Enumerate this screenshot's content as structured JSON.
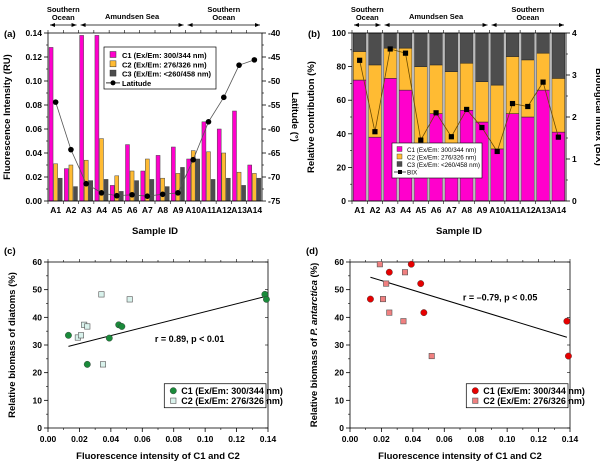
{
  "colors": {
    "C1": "#ff00cc",
    "C2": "#ffbb33",
    "C3": "#4d4d4d",
    "line": "#555555",
    "diatom_C1": "#1a8a3a",
    "diatom_C2": "#d9f2ec",
    "phaeo_C1": "#e60000",
    "phaeo_C2": "#f08080"
  },
  "chart_data": [
    {
      "id": "a",
      "panel_label": "(a)",
      "type": "bar",
      "title": "",
      "xlabel": "Sample ID",
      "ylabel": "Fluorescence Intensity (RU)",
      "y2label": "Latitude (°)",
      "ylim": [
        0,
        0.14
      ],
      "y2lim": [
        -75,
        -40
      ],
      "yticks": [
        "0.00",
        "0.02",
        "0.04",
        "0.06",
        "0.08",
        "0.10",
        "0.12",
        "0.14"
      ],
      "y2ticks": [
        "-75",
        "-70",
        "-65",
        "-60",
        "-55",
        "-50",
        "-45",
        "-40"
      ],
      "categories": [
        "A1",
        "A2",
        "A3",
        "A4",
        "A5",
        "A6",
        "A7",
        "A8",
        "A9",
        "A10",
        "A11",
        "A12",
        "A13",
        "A14"
      ],
      "regions": [
        {
          "label": "Southern Ocean",
          "from": "A1",
          "to": "A2"
        },
        {
          "label": "Amundsen Sea",
          "from": "A3",
          "to": "A9"
        },
        {
          "label": "Southern Ocean",
          "from": "A10",
          "to": "A14"
        }
      ],
      "series": [
        {
          "name": "C1 (Ex/Em: 300/344 nm)",
          "key": "C1",
          "values": [
            0.128,
            0.027,
            0.138,
            0.138,
            0.013,
            0.047,
            0.025,
            0.038,
            0.045,
            0.035,
            0.066,
            0.06,
            0.075,
            0.03
          ]
        },
        {
          "name": "C2 (Ex/Em: 276/326 nm)",
          "key": "C2",
          "values": [
            0.031,
            0.03,
            0.034,
            0.052,
            0.021,
            0.025,
            0.035,
            0.019,
            0.023,
            0.042,
            0.041,
            0.04,
            0.024,
            0.023
          ]
        },
        {
          "name": "C3 (Ex/Em: <260/458 nm)",
          "key": "C3",
          "values": [
            0.019,
            0.012,
            0.017,
            0.018,
            0.008,
            0.017,
            0.018,
            0.012,
            0.028,
            0.035,
            0.018,
            0.019,
            0.013,
            0.019
          ]
        },
        {
          "name": "Latitude",
          "key": "lat",
          "axis": "right",
          "values": [
            -54.4,
            -64.3,
            -71.4,
            -73.3,
            -73.9,
            -73.7,
            -74.0,
            -73.6,
            -73.3,
            -66.4,
            -58.5,
            -53.4,
            -46.7,
            -45.6
          ]
        }
      ],
      "legend": [
        "C1 (Ex/Em: 300/344 nm)",
        "C2 (Ex/Em: 276/326 nm)",
        "C3 (Ex/Em: <260/458 nm)",
        "Latitude"
      ],
      "legend_position": "top-center"
    },
    {
      "id": "b",
      "panel_label": "(b)",
      "type": "bar",
      "stacked": true,
      "xlabel": "Sample ID",
      "ylabel": "Relative contribution (%)",
      "y2label": "Biological Index (BIX)",
      "ylim": [
        0,
        100
      ],
      "y2lim": [
        0,
        4
      ],
      "yticks": [
        "0",
        "20",
        "40",
        "60",
        "80",
        "100"
      ],
      "y2ticks": [
        "0",
        "1",
        "2",
        "3",
        "4"
      ],
      "categories": [
        "A1",
        "A2",
        "A3",
        "A4",
        "A5",
        "A6",
        "A7",
        "A8",
        "A9",
        "A10",
        "A11",
        "A12",
        "A13",
        "A14"
      ],
      "regions": [
        {
          "label": "Southern Ocean",
          "from": "A1",
          "to": "A2"
        },
        {
          "label": "Amundsen Sea",
          "from": "A3",
          "to": "A9"
        },
        {
          "label": "Southern Ocean",
          "from": "A10",
          "to": "A14"
        }
      ],
      "series": [
        {
          "name": "C1 (Ex/Em: 300/344 nm)",
          "key": "C1",
          "values": [
            72,
            38,
            73,
            66,
            30,
            52,
            32,
            54,
            47,
            31,
            52,
            50,
            66,
            41
          ]
        },
        {
          "name": "C2 (Ex/Em: 276/326 nm)",
          "key": "C2",
          "values": [
            17,
            43,
            18,
            25,
            50,
            29,
            45,
            28,
            24,
            38,
            34,
            34,
            22,
            32
          ]
        },
        {
          "name": "C3 (Ex/Em: <260/458 nm)",
          "key": "C3",
          "values": [
            11,
            19,
            9,
            9,
            20,
            19,
            23,
            18,
            29,
            31,
            14,
            16,
            12,
            27
          ]
        },
        {
          "name": "BIX",
          "key": "bix",
          "axis": "right",
          "values": [
            3.35,
            1.65,
            3.62,
            3.52,
            1.45,
            2.1,
            1.53,
            2.18,
            1.75,
            1.18,
            2.32,
            2.25,
            2.83,
            1.52
          ]
        }
      ],
      "legend": [
        "C1 (Ex/Em: 300/344 nm)",
        "C2 (Ex/Em: 276/326 nm)",
        "C3 (Ex/Em: <260/458 nm)",
        "BIX"
      ],
      "legend_position": "bottom-left"
    },
    {
      "id": "c",
      "panel_label": "(c)",
      "type": "scatter",
      "xlabel": "Fluorescence intensity of C1 and C2",
      "ylabel": "Relative biomass of diatoms (%)",
      "xlim": [
        0,
        0.14
      ],
      "ylim": [
        0,
        60
      ],
      "xticks": [
        "0.00",
        "0.02",
        "0.04",
        "0.06",
        "0.08",
        "0.10",
        "0.12",
        "0.14"
      ],
      "yticks": [
        "0",
        "10",
        "20",
        "30",
        "40",
        "50",
        "60"
      ],
      "annotation": "r = 0.89, p < 0.01",
      "fit_line": {
        "x": [
          0.013,
          0.138
        ],
        "y": [
          29.5,
          47.5
        ]
      },
      "series": [
        {
          "name": "C1 (Ex/Em: 300/344 nm)",
          "key": "diatom_C1",
          "marker": "circle",
          "x": [
            0.013,
            0.025,
            0.039,
            0.045,
            0.047,
            0.138,
            0.139
          ],
          "y": [
            33.5,
            23.0,
            32.5,
            37.3,
            36.7,
            48.3,
            46.5
          ]
        },
        {
          "name": "C2 (Ex/Em: 276/326 nm)",
          "key": "diatom_C2",
          "marker": "square",
          "x": [
            0.019,
            0.021,
            0.023,
            0.025,
            0.034,
            0.035,
            0.052
          ],
          "y": [
            32.7,
            33.5,
            37.3,
            36.7,
            48.3,
            23.0,
            46.5
          ]
        }
      ],
      "legend_position": "bottom-right"
    },
    {
      "id": "d",
      "panel_label": "(d)",
      "type": "scatter",
      "xlabel": "Fluorescence intensity of C1 and C2",
      "ylabel_prefix": "Relative biomass of ",
      "ylabel_italic": "P. antarctica",
      "ylabel_suffix": " (%)",
      "xlim": [
        0,
        0.14
      ],
      "ylim": [
        0,
        60
      ],
      "xticks": [
        "0.00",
        "0.02",
        "0.04",
        "0.06",
        "0.08",
        "0.10",
        "0.12",
        "0.14"
      ],
      "yticks": [
        "0",
        "10",
        "20",
        "30",
        "40",
        "50",
        "60"
      ],
      "annotation": "r = –0.79, p < 0.05",
      "fit_line": {
        "x": [
          0.013,
          0.138
        ],
        "y": [
          54.5,
          32.8
        ]
      },
      "series": [
        {
          "name": "C1 (Ex/Em: 300/344 nm)",
          "key": "phaeo_C1",
          "marker": "circle",
          "x": [
            0.013,
            0.025,
            0.039,
            0.045,
            0.047,
            0.138,
            0.139
          ],
          "y": [
            46.6,
            56.3,
            59.2,
            52.2,
            41.7,
            38.6,
            26.0
          ]
        },
        {
          "name": "C2 (Ex/Em: 276/326 nm)",
          "key": "phaeo_C2",
          "marker": "square",
          "x": [
            0.019,
            0.021,
            0.023,
            0.025,
            0.034,
            0.035,
            0.052
          ],
          "y": [
            59.2,
            46.6,
            52.2,
            41.7,
            38.6,
            56.3,
            26.0
          ]
        }
      ],
      "legend_position": "bottom-right"
    }
  ]
}
